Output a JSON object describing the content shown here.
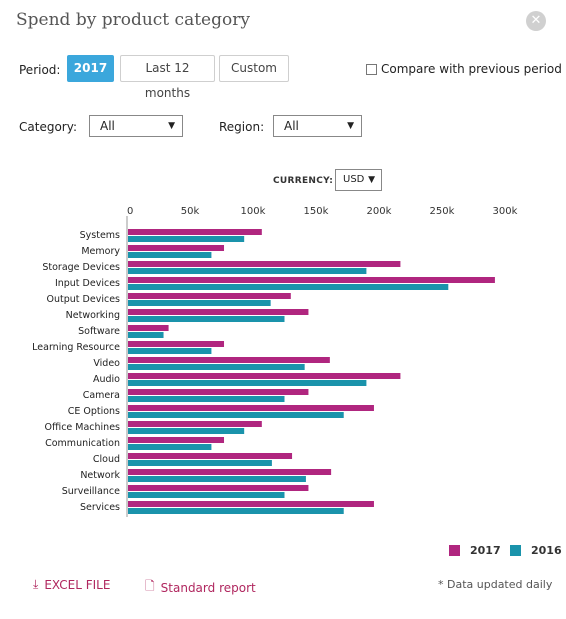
{
  "header": {
    "title": "Spend by product category",
    "close_icon": "close-icon"
  },
  "period": {
    "label": "Period:",
    "options": [
      "2017",
      "Last 12 months",
      "Custom"
    ],
    "active": "2017",
    "compare_label": "Compare with previous period",
    "compare_checked": false
  },
  "filters": {
    "category_label": "Category:",
    "category_value": "All",
    "region_label": "Region:",
    "region_value": "All"
  },
  "currency": {
    "label": "CURRENCY:",
    "value": "USD"
  },
  "colors": {
    "accent": "#3ba7dc",
    "series_2017": "#b0267f",
    "series_2016": "#1a93ab",
    "link": "#b0275f"
  },
  "chart_data": {
    "type": "bar",
    "orientation": "horizontal",
    "title": "",
    "xlabel": "",
    "ylabel": "",
    "xlim": [
      0,
      300000
    ],
    "ticks": [
      {
        "value": 0,
        "label": "0"
      },
      {
        "value": 50000,
        "label": "50k"
      },
      {
        "value": 100000,
        "label": "100k"
      },
      {
        "value": 150000,
        "label": "150k"
      },
      {
        "value": 200000,
        "label": "200k"
      },
      {
        "value": 250000,
        "label": "250k"
      },
      {
        "value": 300000,
        "label": "300k"
      }
    ],
    "grid": false,
    "legend_position": "bottom-right",
    "categories": [
      "Systems",
      "Memory",
      "Storage Devices",
      "Input Devices",
      "Output Devices",
      "Networking",
      "Software",
      "Learning Resource",
      "Video",
      "Audio",
      "Camera",
      "CE Options",
      "Office Machines",
      "Communication",
      "Cloud",
      "Network",
      "Surveillance",
      "Services"
    ],
    "series": [
      {
        "name": "2017",
        "color": "#b0267f",
        "values": [
          107000,
          77000,
          217000,
          292000,
          130000,
          144000,
          33000,
          77000,
          161000,
          217000,
          144000,
          196000,
          107000,
          77000,
          131000,
          162000,
          144000,
          196000
        ]
      },
      {
        "name": "2016",
        "color": "#1a93ab",
        "values": [
          93000,
          67000,
          190000,
          255000,
          114000,
          125000,
          29000,
          67000,
          141000,
          190000,
          125000,
          172000,
          93000,
          67000,
          115000,
          142000,
          125000,
          172000
        ]
      }
    ]
  },
  "footer": {
    "excel_label": "EXCEL FILE",
    "excel_icon": "download-icon",
    "report_label": "Standard report",
    "report_icon": "document-icon",
    "note": "* Data updated daily"
  }
}
